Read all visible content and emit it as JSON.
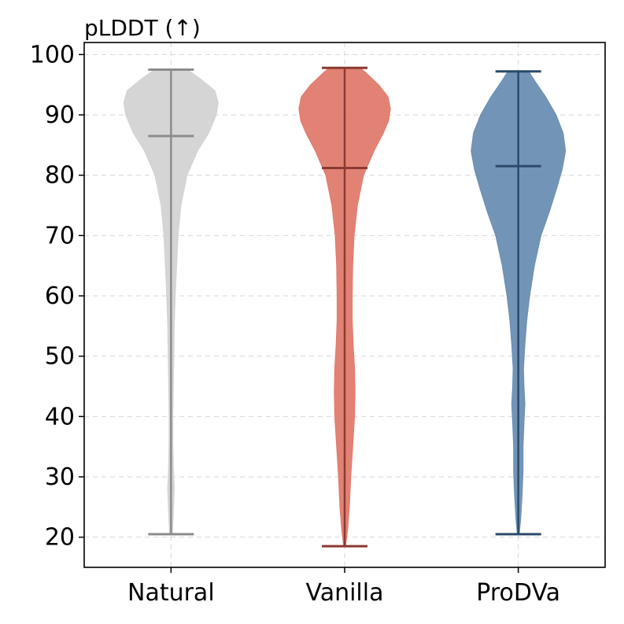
{
  "chart_data": {
    "type": "violin",
    "title": "pLDDT (↑)",
    "xlabel": "",
    "ylabel": "",
    "ylim": [
      15,
      102
    ],
    "yticks": [
      20,
      30,
      40,
      50,
      60,
      70,
      80,
      90,
      100
    ],
    "grid": true,
    "categories": [
      "Natural",
      "Vanilla",
      "ProDVa"
    ],
    "series": [
      {
        "name": "Natural",
        "min": 20.5,
        "median": 86.5,
        "max": 97.5,
        "fill_color": "#d3d3d3",
        "line_color": "#8c8c8c",
        "density": [
          [
            20.5,
            0.03
          ],
          [
            24,
            0.05
          ],
          [
            28,
            0.07
          ],
          [
            32,
            0.05
          ],
          [
            36,
            0.04
          ],
          [
            40,
            0.04
          ],
          [
            45,
            0.05
          ],
          [
            50,
            0.06
          ],
          [
            55,
            0.07
          ],
          [
            60,
            0.09
          ],
          [
            65,
            0.12
          ],
          [
            70,
            0.15
          ],
          [
            75,
            0.21
          ],
          [
            80,
            0.34
          ],
          [
            84,
            0.56
          ],
          [
            87,
            0.8
          ],
          [
            90,
            0.96
          ],
          [
            92,
            1.0
          ],
          [
            94,
            0.93
          ],
          [
            96,
            0.62
          ],
          [
            97.5,
            0.35
          ]
        ]
      },
      {
        "name": "Vanilla",
        "min": 18.5,
        "median": 81.2,
        "max": 97.8,
        "fill_color": "#e07b6d",
        "line_color": "#8b3a31",
        "density": [
          [
            18.5,
            0.02
          ],
          [
            21,
            0.06
          ],
          [
            25,
            0.1
          ],
          [
            30,
            0.13
          ],
          [
            35,
            0.17
          ],
          [
            40,
            0.21
          ],
          [
            44,
            0.22
          ],
          [
            48,
            0.21
          ],
          [
            52,
            0.18
          ],
          [
            56,
            0.16
          ],
          [
            60,
            0.16
          ],
          [
            65,
            0.17
          ],
          [
            70,
            0.2
          ],
          [
            75,
            0.27
          ],
          [
            80,
            0.4
          ],
          [
            84,
            0.62
          ],
          [
            87,
            0.82
          ],
          [
            89,
            0.93
          ],
          [
            91,
            0.97
          ],
          [
            93,
            0.92
          ],
          [
            95,
            0.72
          ],
          [
            97,
            0.45
          ],
          [
            97.8,
            0.32
          ]
        ]
      },
      {
        "name": "ProDVa",
        "min": 20.5,
        "median": 81.5,
        "max": 97.2,
        "fill_color": "#6a8fb3",
        "line_color": "#2c4a6a",
        "density": [
          [
            20.5,
            0.02
          ],
          [
            23,
            0.05
          ],
          [
            27,
            0.08
          ],
          [
            31,
            0.1
          ],
          [
            35,
            0.1
          ],
          [
            39,
            0.12
          ],
          [
            42,
            0.14
          ],
          [
            45,
            0.12
          ],
          [
            48,
            0.11
          ],
          [
            52,
            0.14
          ],
          [
            56,
            0.18
          ],
          [
            60,
            0.24
          ],
          [
            65,
            0.34
          ],
          [
            70,
            0.48
          ],
          [
            74,
            0.66
          ],
          [
            78,
            0.82
          ],
          [
            81,
            0.93
          ],
          [
            84,
            1.0
          ],
          [
            87,
            0.95
          ],
          [
            90,
            0.8
          ],
          [
            93,
            0.58
          ],
          [
            95.5,
            0.36
          ],
          [
            97.2,
            0.22
          ]
        ]
      }
    ]
  }
}
